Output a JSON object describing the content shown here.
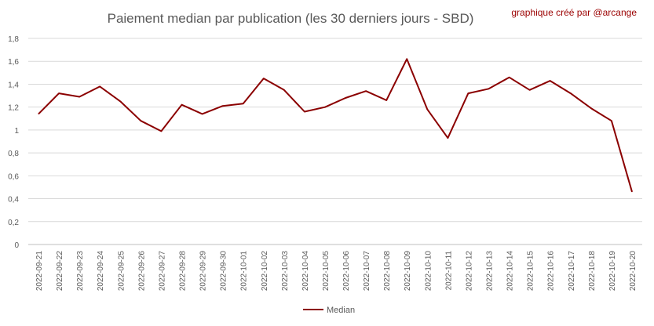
{
  "header": {
    "title": "Paiement median par publication (les 30 derniers jours - SBD)",
    "credit": "graphique créé par @arcange"
  },
  "chart_data": {
    "type": "line",
    "title": "Paiement median par publication (les 30 derniers jours - SBD)",
    "xlabel": "",
    "ylabel": "",
    "ylim": [
      0,
      1.8
    ],
    "yticks": [
      "0",
      "0,2",
      "0,4",
      "0,6",
      "0,8",
      "1",
      "1,2",
      "1,4",
      "1,6",
      "1,8"
    ],
    "grid": true,
    "legend_position": "bottom",
    "line_color": "#8b0000",
    "categories": [
      "2022-09-21",
      "2022-09-22",
      "2022-09-23",
      "2022-09-24",
      "2022-09-25",
      "2022-09-26",
      "2022-09-27",
      "2022-09-28",
      "2022-09-29",
      "2022-09-30",
      "2022-10-01",
      "2022-10-02",
      "2022-10-03",
      "2022-10-04",
      "2022-10-05",
      "2022-10-06",
      "2022-10-07",
      "2022-10-08",
      "2022-10-09",
      "2022-10-10",
      "2022-10-11",
      "2022-10-12",
      "2022-10-13",
      "2022-10-14",
      "2022-10-15",
      "2022-10-16",
      "2022-10-17",
      "2022-10-18",
      "2022-10-19",
      "2022-10-20"
    ],
    "series": [
      {
        "name": "Median",
        "values": [
          1.14,
          1.32,
          1.29,
          1.38,
          1.25,
          1.08,
          0.99,
          1.22,
          1.14,
          1.21,
          1.23,
          1.45,
          1.35,
          1.16,
          1.2,
          1.28,
          1.34,
          1.26,
          1.62,
          1.18,
          0.93,
          1.32,
          1.36,
          1.46,
          1.35,
          1.43,
          1.32,
          1.19,
          1.08,
          0.46
        ]
      }
    ]
  }
}
